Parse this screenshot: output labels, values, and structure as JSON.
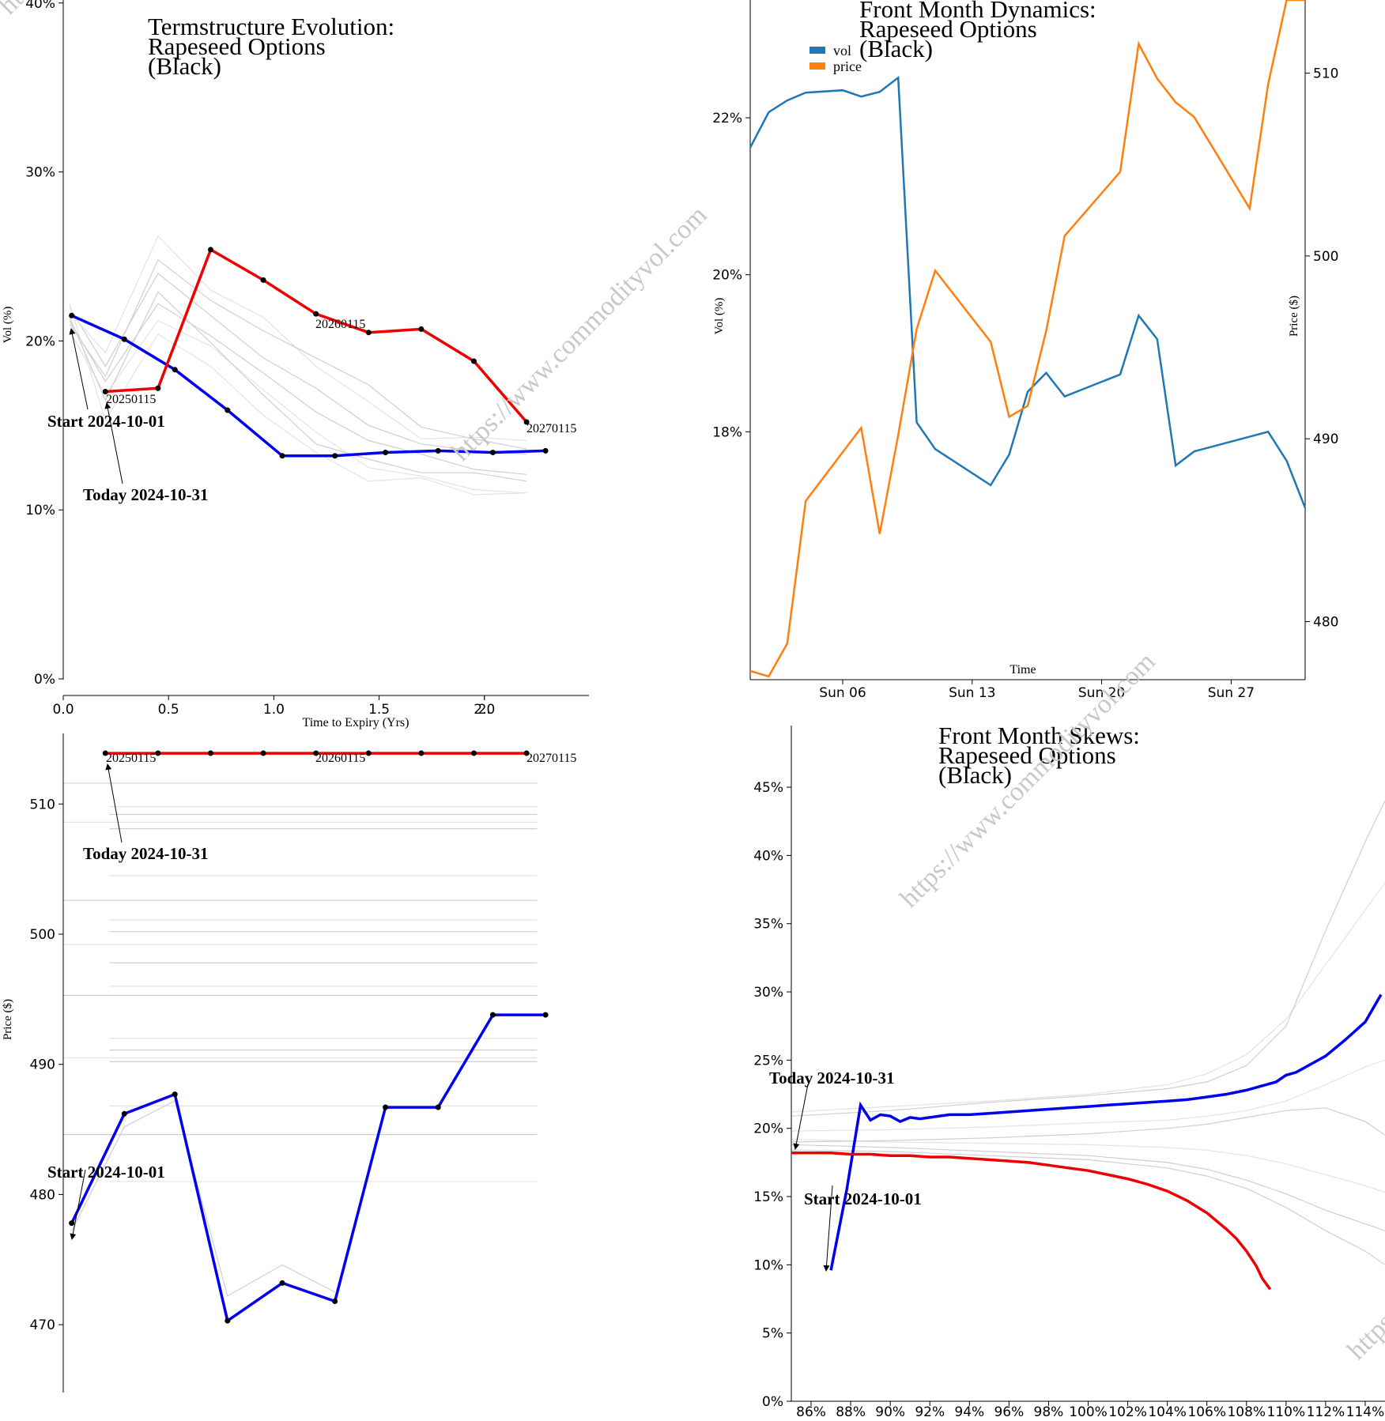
{
  "watermark": "https://www.commodityvol.com",
  "colors": {
    "start": "#0000ee",
    "today": "#ee0000",
    "vol": "#1f77b4",
    "price": "#ff7f0e",
    "history": "#cfcfcf"
  },
  "chart_data": [
    {
      "id": "termstructure",
      "type": "line",
      "title_lines": [
        "Termstructure Evolution:",
        "Rapeseed Options",
        "(Black)"
      ],
      "xlabel": "Time to Expiry (Yrs)",
      "ylabel": "Vol (%)",
      "xlim": [
        0,
        2.5
      ],
      "ylim": [
        0,
        42
      ],
      "x_ticks": [
        "0.0",
        "0.5",
        "1.0",
        "1.5",
        "2.0",
        "2."
      ],
      "y_ticks": [
        "0%",
        "10%",
        "20%",
        "30%",
        "40%"
      ],
      "expiry_labels": [
        "20250115",
        "20260115",
        "20270115"
      ],
      "annotations": {
        "start": "Start 2024-10-01",
        "today": "Today 2024-10-31"
      },
      "series": [
        {
          "role": "start",
          "x": [
            0.04,
            0.29,
            0.53,
            0.78,
            1.04,
            1.29,
            1.53,
            1.78,
            2.04,
            2.29
          ],
          "values": [
            21.5,
            20.1,
            18.3,
            15.9,
            13.2,
            13.2,
            13.4,
            13.5,
            13.4,
            13.5
          ]
        },
        {
          "role": "today",
          "x": [
            0.2,
            0.45,
            0.7,
            0.95,
            1.2,
            1.45,
            1.7,
            1.95,
            2.2
          ],
          "values": [
            17.0,
            17.2,
            25.4,
            23.6,
            21.6,
            20.5,
            20.7,
            18.8,
            15.2
          ]
        }
      ]
    },
    {
      "id": "front_month_dynamics",
      "type": "line",
      "title_lines": [
        "Front Month Dynamics:",
        "Rapeseed Options",
        "(Black)"
      ],
      "xlabel": "Time",
      "ylabel": "Vol (%)",
      "ylabel_right": "Price ($)",
      "x_ticks": [
        "Sun 06",
        "Sun 13",
        "Sun 20",
        "Sun 27"
      ],
      "y_ticks": [
        "18%",
        "20%",
        "22%"
      ],
      "y_ticks_right": [
        "480",
        "490",
        "500",
        "510"
      ],
      "ylim": [
        16.0,
        23.5
      ],
      "ylim_right": [
        477.3,
        514.0
      ],
      "xlim": [
        1,
        31
      ],
      "legend": {
        "position": "top-left",
        "entries": [
          "vol",
          "price"
        ]
      },
      "series": [
        {
          "name": "vol",
          "x": [
            1,
            2,
            3,
            4,
            6,
            7,
            8,
            9,
            10,
            11,
            14,
            15,
            16,
            17,
            18,
            21,
            22,
            23,
            24,
            25,
            29,
            30,
            31
          ],
          "values": [
            21.62,
            22.07,
            22.22,
            22.32,
            22.35,
            22.27,
            22.33,
            22.51,
            18.12,
            17.78,
            17.32,
            17.71,
            18.51,
            18.75,
            18.45,
            18.73,
            19.48,
            19.18,
            17.57,
            17.75,
            18.0,
            17.63,
            17.03
          ]
        },
        {
          "name": "price",
          "x": [
            1,
            2,
            3,
            4,
            7,
            8,
            9,
            10,
            11,
            14,
            15,
            16,
            17,
            18,
            21,
            22,
            23,
            24,
            25,
            28,
            29,
            30,
            31
          ],
          "values": [
            477.3,
            477.0,
            478.8,
            486.6,
            490.6,
            484.8,
            490.2,
            496.0,
            499.2,
            495.3,
            491.2,
            491.8,
            495.9,
            501.1,
            504.6,
            511.6,
            509.7,
            508.4,
            507.6,
            502.6,
            509.4,
            514.0,
            514.0
          ]
        }
      ]
    },
    {
      "id": "price_termstructure",
      "type": "line",
      "ylabel": "Price ($)",
      "ylim": [
        466,
        517
      ],
      "xlim": [
        0,
        2.5
      ],
      "y_ticks": [
        "470",
        "480",
        "490",
        "500",
        "510"
      ],
      "expiry_labels": [
        "20250115",
        "20260115",
        "20270115"
      ],
      "annotations": {
        "start": "Start 2024-10-01",
        "today": "Today 2024-10-31"
      },
      "series": [
        {
          "role": "start",
          "x": [
            0.04,
            0.29,
            0.53,
            0.78,
            1.04,
            1.29,
            1.53,
            1.78,
            2.04,
            2.29
          ],
          "values": [
            477.8,
            486.2,
            487.7,
            470.3,
            473.2,
            471.8,
            486.7,
            486.7,
            493.8,
            493.8
          ]
        },
        {
          "role": "today",
          "x": [
            0.2,
            0.45,
            0.7,
            0.95,
            1.2,
            1.45,
            1.7,
            1.95,
            2.2
          ],
          "values": [
            513.9,
            513.9,
            513.9,
            513.9,
            513.9,
            513.9,
            513.9,
            513.9,
            513.9
          ]
        }
      ]
    },
    {
      "id": "front_month_skews",
      "type": "line",
      "title_lines": [
        "Front Month Skews:",
        "Rapeseed Options",
        "(Black)"
      ],
      "xlim": [
        85,
        115
      ],
      "ylim": [
        0,
        49
      ],
      "x_ticks": [
        "86%",
        "88%",
        "90%",
        "92%",
        "94%",
        "96%",
        "98%",
        "100%",
        "102%",
        "104%",
        "106%",
        "108%",
        "110%",
        "112%",
        "114%"
      ],
      "y_ticks": [
        "0%",
        "5%",
        "10%",
        "15%",
        "20%",
        "25%",
        "30%",
        "35%",
        "40%",
        "45%"
      ],
      "annotations": {
        "start": "Start 2024-10-01",
        "today": "Today 2024-10-31"
      },
      "series": [
        {
          "role": "start",
          "x": [
            87.0,
            87.8,
            88.5,
            89.0,
            89.5,
            90.0,
            90.5,
            91.0,
            91.5,
            92.0,
            93.0,
            94.0,
            95.0,
            96.0,
            97.0,
            98.0,
            99.0,
            100.0,
            101.0,
            102.0,
            103.0,
            104.0,
            105.0,
            106.0,
            107.0,
            108.0,
            109.0,
            109.5,
            110.0,
            110.5,
            111.0,
            112.0,
            113.0,
            114.0,
            114.8
          ],
          "values": [
            9.6,
            15.5,
            21.7,
            20.6,
            21.0,
            20.9,
            20.5,
            20.8,
            20.7,
            20.8,
            21.0,
            21.0,
            21.1,
            21.2,
            21.3,
            21.4,
            21.5,
            21.6,
            21.7,
            21.8,
            21.9,
            22.0,
            22.1,
            22.3,
            22.5,
            22.8,
            23.2,
            23.4,
            23.9,
            24.1,
            24.5,
            25.3,
            26.5,
            27.8,
            29.8
          ]
        },
        {
          "role": "today",
          "x": [
            85.0,
            86.0,
            87.0,
            88.0,
            89.0,
            90.0,
            91.0,
            92.0,
            93.0,
            94.0,
            95.0,
            96.0,
            97.0,
            98.0,
            99.0,
            100.0,
            101.0,
            102.0,
            103.0,
            104.0,
            105.0,
            106.0,
            107.0,
            107.5,
            108.0,
            108.5,
            108.8,
            109.2
          ],
          "values": [
            18.2,
            18.2,
            18.2,
            18.1,
            18.1,
            18.0,
            18.0,
            17.9,
            17.9,
            17.8,
            17.7,
            17.6,
            17.5,
            17.3,
            17.1,
            16.9,
            16.6,
            16.3,
            15.9,
            15.4,
            14.7,
            13.8,
            12.6,
            11.9,
            11.0,
            9.9,
            9.0,
            8.2
          ]
        }
      ]
    }
  ]
}
